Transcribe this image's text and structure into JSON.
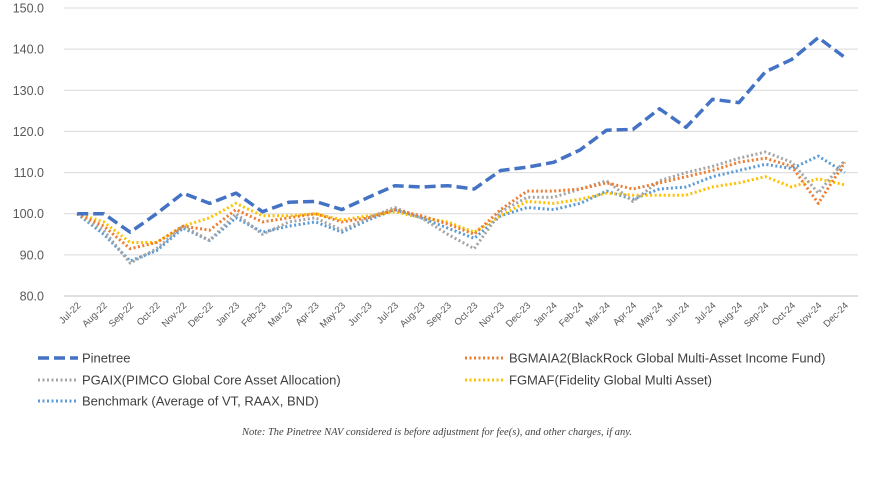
{
  "chart_data": {
    "type": "line",
    "title": "",
    "xlabel": "",
    "ylabel": "",
    "ylim": [
      80,
      150
    ],
    "yticks": [
      "80.0",
      "90.0",
      "100.0",
      "110.0",
      "120.0",
      "130.0",
      "140.0",
      "150.0"
    ],
    "grid": "horizontal",
    "legend_position": "bottom",
    "categories": [
      "Jul-22",
      "Aug-22",
      "Sep-22",
      "Oct-22",
      "Nov-22",
      "Dec-22",
      "Jan-23",
      "Feb-23",
      "Mar-23",
      "Apr-23",
      "May-23",
      "Jun-23",
      "Jul-23",
      "Aug-23",
      "Sep-23",
      "Oct-23",
      "Nov-23",
      "Dec-23",
      "Jan-24",
      "Feb-24",
      "Mar-24",
      "Apr-24",
      "May-24",
      "Jun-24",
      "Jul-24",
      "Aug-24",
      "Sep-24",
      "Oct-24",
      "Nov-24",
      "Dec-24"
    ],
    "series": [
      {
        "name": "Pinetree",
        "color": "#4472C4",
        "dash": "dashed",
        "values": [
          100.0,
          100.0,
          95.5,
          100.0,
          105.0,
          102.5,
          105.0,
          100.5,
          102.8,
          103.0,
          101.0,
          104.0,
          106.8,
          106.5,
          106.8,
          106.0,
          110.5,
          111.3,
          112.5,
          115.5,
          120.3,
          120.5,
          125.5,
          121.0,
          127.8,
          127.0,
          134.5,
          137.5,
          142.8,
          138.0
        ]
      },
      {
        "name": "BGMAIA2(BlackRock Global Multi-Asset Income Fund)",
        "color": "#ED7D31",
        "dash": "dotted",
        "values": [
          100.0,
          97.0,
          91.5,
          93.0,
          97.0,
          96.0,
          101.0,
          98.0,
          99.0,
          100.0,
          98.0,
          99.0,
          101.0,
          99.5,
          97.5,
          95.0,
          101.0,
          105.5,
          105.5,
          106.0,
          107.5,
          106.0,
          107.5,
          109.0,
          110.5,
          112.5,
          113.5,
          111.5,
          102.5,
          112.5
        ]
      },
      {
        "name": "PGAIX(PIMCO Global Core Asset Allocation)",
        "color": "#A5A5A5",
        "dash": "dotted",
        "values": [
          100.0,
          96.0,
          88.0,
          91.5,
          97.0,
          93.5,
          100.0,
          95.0,
          98.0,
          99.0,
          96.0,
          99.0,
          101.5,
          99.0,
          95.0,
          91.5,
          100.5,
          104.0,
          104.0,
          106.0,
          108.0,
          103.0,
          108.0,
          110.0,
          111.5,
          113.5,
          115.0,
          112.5,
          105.0,
          113.0
        ]
      },
      {
        "name": "FGMAF(Fidelity Global Multi Asset)",
        "color": "#FFC000",
        "dash": "dotted",
        "values": [
          100.0,
          98.0,
          93.0,
          93.0,
          97.0,
          99.0,
          102.5,
          99.5,
          99.5,
          100.0,
          98.5,
          99.5,
          100.5,
          99.0,
          98.0,
          95.5,
          99.5,
          103.0,
          102.5,
          103.5,
          105.0,
          104.5,
          104.5,
          104.5,
          106.5,
          107.5,
          109.0,
          106.5,
          108.5,
          107.0
        ]
      },
      {
        "name": "Benchmark (Average of VT, RAAX, BND)",
        "color": "#5B9BD5",
        "dash": "dotted",
        "values": [
          100.0,
          95.0,
          88.5,
          91.0,
          96.5,
          93.5,
          99.0,
          95.5,
          97.0,
          98.0,
          95.5,
          98.5,
          101.0,
          99.0,
          96.5,
          94.0,
          99.5,
          101.5,
          101.0,
          102.5,
          105.5,
          103.5,
          106.0,
          106.5,
          109.0,
          110.5,
          112.0,
          111.0,
          114.0,
          110.0
        ]
      }
    ]
  },
  "note": "Note: The Pinetree NAV considered is before adjustment for fee(s), and other charges, if any."
}
